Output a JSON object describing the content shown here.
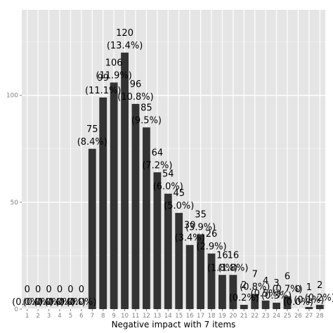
{
  "chart_data": {
    "type": "bar",
    "xlabel": "Negative impact with 7 items",
    "ylabel": "",
    "ylim": [
      0,
      140
    ],
    "yticks": [
      0,
      50,
      100
    ],
    "grid": true,
    "categories": [
      "1",
      "2",
      "3",
      "4",
      "5",
      "6",
      "7",
      "8",
      "9",
      "10",
      "11",
      "12",
      "13",
      "14",
      "15",
      "16",
      "17",
      "18",
      "19",
      "20",
      "21",
      "22",
      "23",
      "24",
      "25",
      "26",
      "27",
      "28"
    ],
    "values": [
      0,
      0,
      0,
      0,
      0,
      0,
      75,
      99,
      106,
      120,
      96,
      85,
      64,
      54,
      45,
      30,
      35,
      26,
      16,
      16,
      2,
      7,
      4,
      3,
      6,
      0,
      1,
      2
    ],
    "labels_count": [
      "0",
      "0",
      "0",
      "0",
      "0",
      "0",
      "75",
      "99",
      "106",
      "120",
      "96",
      "85",
      "64",
      "54",
      "45",
      "30",
      "35",
      "26",
      "16",
      "16",
      "2",
      "7",
      "4",
      "3",
      "6",
      "0",
      "1",
      "2"
    ],
    "labels_pct": [
      "(0.0%)",
      "(0.0%)",
      "(0.0%)",
      "(0.0%)",
      "(0.0%)",
      "(0.0%)",
      "(8.4%)",
      "(11.1%)",
      "(11.9%)",
      "(13.4%)",
      "(10.8%)",
      "(9.5%)",
      "(7.2%)",
      "(6.0%)",
      "(5.0%)",
      "(3.4%)",
      "(3.9%)",
      "(2.9%)",
      "(1.8%)",
      "(1.8%)",
      "(0.2%)",
      "(0.8%)",
      "(0.5%)",
      "(0.3%)",
      "(0.7%)",
      "(0.0%)",
      "(0.1%)",
      "(0.2%)"
    ],
    "colors": {
      "panel": "#e5e5e5",
      "grid_major": "#ffffff",
      "grid_minor": "#f0f0f0",
      "bar": "#333333"
    }
  }
}
